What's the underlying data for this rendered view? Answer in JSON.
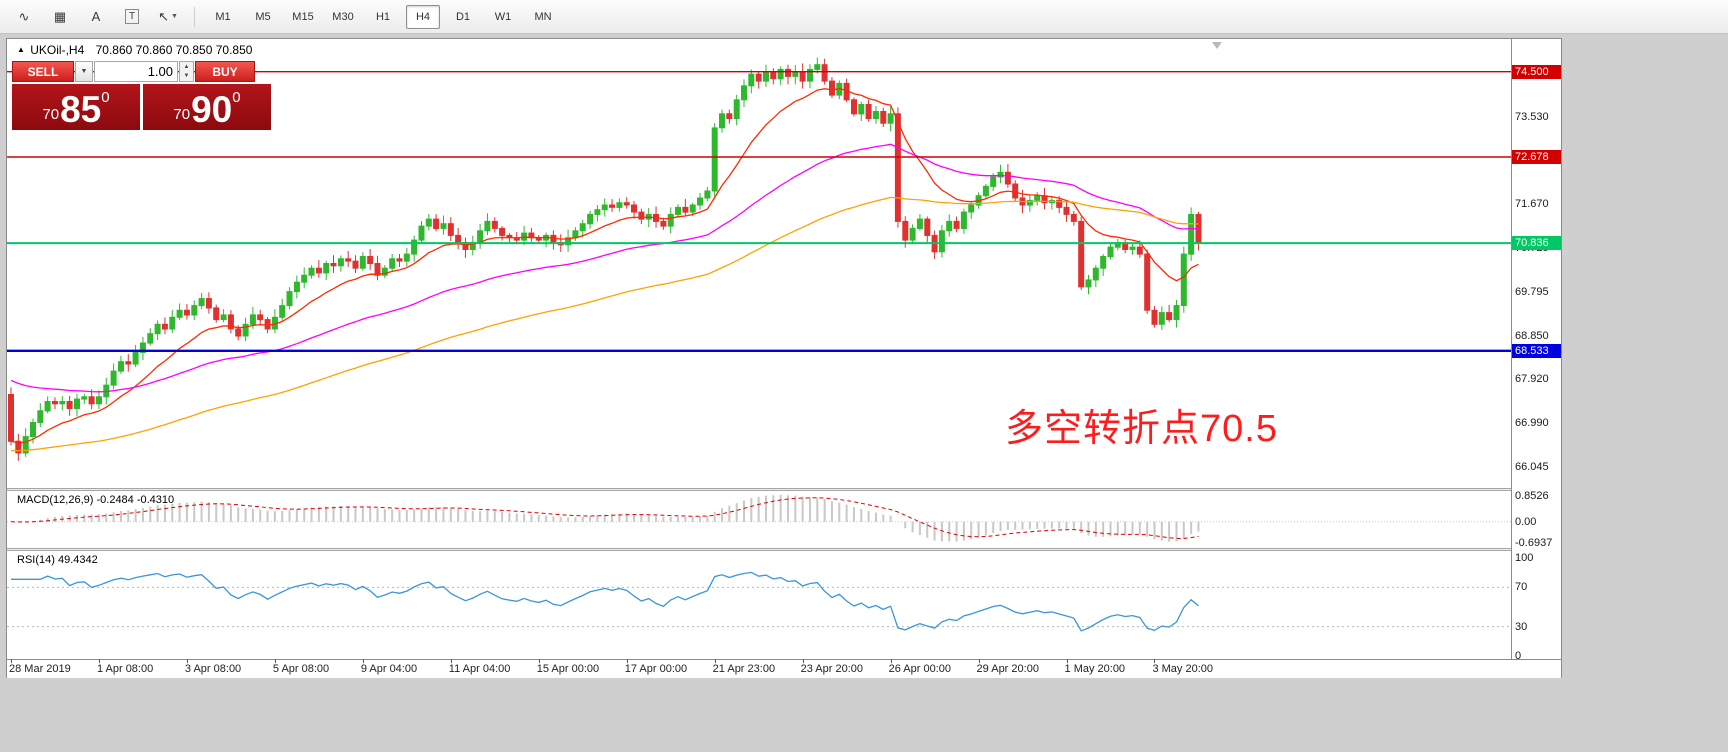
{
  "window": {
    "background": "#cfcfcf"
  },
  "toolbar": {
    "tool_icons": [
      {
        "name": "indicators-icon",
        "glyph": "∿"
      },
      {
        "name": "grid-icon",
        "glyph": "▦"
      },
      {
        "name": "text-icon",
        "glyph": "A"
      },
      {
        "name": "text-label-icon",
        "glyph": "T",
        "boxed": true
      },
      {
        "name": "shapes-icon",
        "glyph": "↖",
        "caret": true
      }
    ],
    "dropdown_caret": "▼",
    "timeframes": [
      {
        "label": "M1",
        "active": false
      },
      {
        "label": "M5",
        "active": false
      },
      {
        "label": "M15",
        "active": false
      },
      {
        "label": "M30",
        "active": false
      },
      {
        "label": "H1",
        "active": false
      },
      {
        "label": "H4",
        "active": true
      },
      {
        "label": "D1",
        "active": false
      },
      {
        "label": "W1",
        "active": false
      },
      {
        "label": "MN",
        "active": false
      }
    ]
  },
  "chart": {
    "marker": "▲",
    "title": "UKOil-,H4",
    "ohlc": "70.860 70.860 70.850 70.850"
  },
  "trade_panel": {
    "sell_label": "SELL",
    "buy_label": "BUY",
    "volume": "1.00",
    "dropdown_icon": "▼",
    "spinner_up": "▲",
    "spinner_down": "▼",
    "sell_price": {
      "small": "70",
      "big": "85",
      "sup": "0"
    },
    "buy_price": {
      "small": "70",
      "big": "90",
      "sup": "0"
    }
  },
  "annotation": {
    "text": "多空转折点70.5",
    "color": "#fe1c1c"
  },
  "price_axis": {
    "ticks": [
      {
        "label": "73.530",
        "price": 73.53
      },
      {
        "label": "71.670",
        "price": 71.67
      },
      {
        "label": "70.725",
        "price": 70.725
      },
      {
        "label": "69.795",
        "price": 69.795
      },
      {
        "label": "68.850",
        "price": 68.85
      },
      {
        "label": "67.920",
        "price": 67.92
      },
      {
        "label": "66.990",
        "price": 66.99
      },
      {
        "label": "66.045",
        "price": 66.045
      }
    ],
    "tags": [
      {
        "label": "74.500",
        "price": 74.5,
        "color": "#d40000",
        "line_width": 1.4
      },
      {
        "label": "72.678",
        "price": 72.678,
        "color": "#d40000",
        "line_width": 1.4
      },
      {
        "label": "70.836",
        "price": 70.836,
        "color": "#00c864",
        "line_width": 2
      },
      {
        "label": "68.533",
        "price": 68.533,
        "color": "#0000e0",
        "line_width": 2.4
      }
    ]
  },
  "macd": {
    "label": "MACD(12,26,9)",
    "values": "-0.2484 -0.4310",
    "axis": [
      "0.8526",
      "0.00",
      "-0.6937"
    ]
  },
  "rsi": {
    "label": "RSI(14)",
    "value": "49.4342",
    "axis": [
      "100",
      "70",
      "30",
      "0"
    ],
    "levels": [
      70,
      30
    ]
  },
  "time_axis": {
    "step": 12,
    "labels": [
      "28 Mar 2019",
      "1 Apr 08:00",
      "3 Apr 08:00",
      "5 Apr 08:00",
      "9 Apr 04:00",
      "11 Apr 04:00",
      "15 Apr 00:00",
      "17 Apr 00:00",
      "21 Apr 23:00",
      "23 Apr 20:00",
      "26 Apr 00:00",
      "29 Apr 20:00",
      "1 May 20:00",
      "3 May 20:00"
    ]
  },
  "chart_data": {
    "type": "candlestick",
    "symbol": "UKOil-",
    "timeframe": "H4",
    "title": "UKOil-,H4",
    "y_range": [
      65.6,
      75.2
    ],
    "x_step": 7.33,
    "first_open": 67.6,
    "closes": [
      66.6,
      66.35,
      66.7,
      67.0,
      67.25,
      67.45,
      67.4,
      67.45,
      67.3,
      67.5,
      67.55,
      67.4,
      67.55,
      67.8,
      68.1,
      68.3,
      68.25,
      68.5,
      68.7,
      68.9,
      69.1,
      69.0,
      69.25,
      69.4,
      69.3,
      69.5,
      69.65,
      69.45,
      69.2,
      69.3,
      69.0,
      68.85,
      69.1,
      69.3,
      69.2,
      69.0,
      69.25,
      69.5,
      69.8,
      70.0,
      70.15,
      70.3,
      70.2,
      70.4,
      70.35,
      70.5,
      70.45,
      70.3,
      70.55,
      70.4,
      70.15,
      70.3,
      70.5,
      70.45,
      70.6,
      70.9,
      71.2,
      71.35,
      71.15,
      71.25,
      71.0,
      70.85,
      70.7,
      70.85,
      71.1,
      71.3,
      71.15,
      71.0,
      70.95,
      70.9,
      71.05,
      70.95,
      70.9,
      71.0,
      70.85,
      70.8,
      70.95,
      71.1,
      71.25,
      71.45,
      71.55,
      71.65,
      71.6,
      71.7,
      71.65,
      71.5,
      71.35,
      71.45,
      71.3,
      71.2,
      71.45,
      71.6,
      71.5,
      71.65,
      71.8,
      71.95,
      73.3,
      73.6,
      73.5,
      73.9,
      74.2,
      74.45,
      74.3,
      74.5,
      74.35,
      74.55,
      74.4,
      74.5,
      74.3,
      74.55,
      74.65,
      74.3,
      74.0,
      74.25,
      73.9,
      73.6,
      73.8,
      73.5,
      73.65,
      73.4,
      73.6,
      71.3,
      70.9,
      71.15,
      71.35,
      71.0,
      70.65,
      71.1,
      71.3,
      71.15,
      71.5,
      71.65,
      71.85,
      72.05,
      72.25,
      72.35,
      72.1,
      71.8,
      71.65,
      71.75,
      71.85,
      71.7,
      71.75,
      71.6,
      71.45,
      71.3,
      69.9,
      70.05,
      70.3,
      70.55,
      70.75,
      70.85,
      70.7,
      70.75,
      70.6,
      69.4,
      69.1,
      69.35,
      69.2,
      69.5,
      70.6,
      71.45,
      70.85
    ],
    "colors": {
      "bull": "#2eb82e",
      "bear": "#e03030",
      "macd_hist": "#c8c8c8",
      "macd_signal": "#e00000",
      "rsi": "#3a96d9"
    },
    "overlays": [
      {
        "name": "ma-fast-line",
        "period": 13,
        "seed_offset": 0,
        "color": "#ff2a00"
      },
      {
        "name": "ma-mid-line",
        "period": 48,
        "seed_offset": 1.3,
        "color": "#ff00ff"
      },
      {
        "name": "ma-slow-line",
        "period": 90,
        "seed_offset": -0.2,
        "color": "#ffa200"
      }
    ],
    "horizontal_lines": [
      74.5,
      72.678,
      70.836,
      68.533
    ],
    "indicators": [
      {
        "name": "MACD",
        "params": [
          12,
          26,
          9
        ],
        "last_values": [
          -0.2484,
          -0.431
        ],
        "axis_range": [
          -0.6937,
          0.8526
        ]
      },
      {
        "name": "RSI",
        "params": [
          14
        ],
        "last_value": 49.4342,
        "levels": [
          70,
          30
        ],
        "axis_range": [
          0,
          100
        ]
      }
    ]
  }
}
